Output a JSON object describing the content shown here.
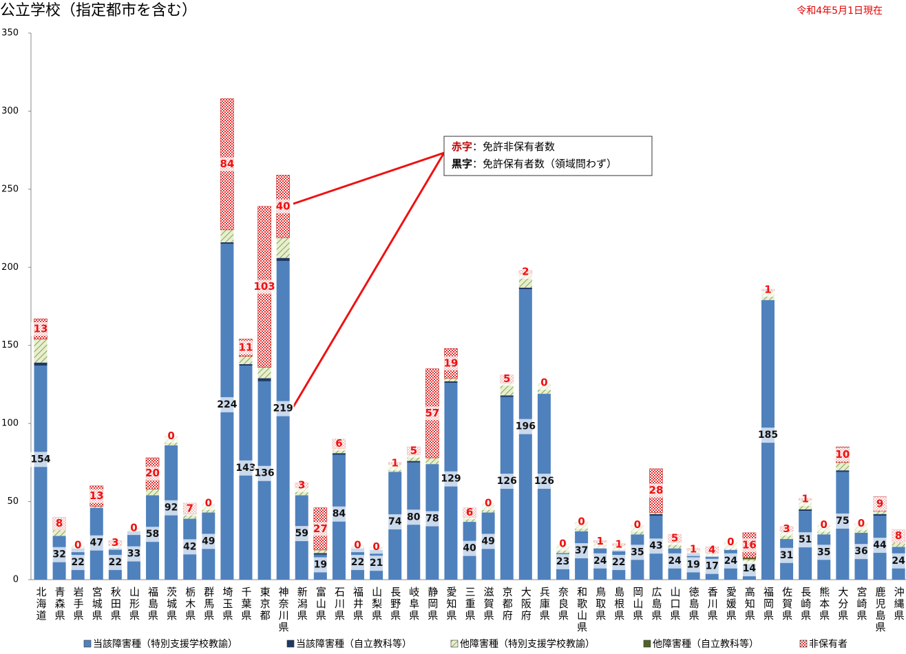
{
  "chart_data": {
    "type": "stacked_bar",
    "title": "公立学校（指定都市を含む）",
    "subtitle": "令和4年5月1日現在",
    "categories": [
      "北海道",
      "青森県",
      "岩手県",
      "宮城県",
      "秋田県",
      "山形県",
      "福島県",
      "茨城県",
      "栃木県",
      "群馬県",
      "埼玉県",
      "千葉県",
      "東京都",
      "神奈川県",
      "新潟県",
      "富山県",
      "石川県",
      "福井県",
      "山梨県",
      "長野県",
      "岐阜県",
      "静岡県",
      "愛知県",
      "三重県",
      "滋賀県",
      "京都府",
      "大阪府",
      "兵庫県",
      "奈良県",
      "和歌山県",
      "鳥取県",
      "島根県",
      "岡山県",
      "広島県",
      "山口県",
      "徳島県",
      "香川県",
      "愛媛県",
      "高知県",
      "福岡県",
      "佐賀県",
      "長崎県",
      "熊本県",
      "大分県",
      "宮崎県",
      "鹿児島県",
      "沖縄県"
    ],
    "series": [
      {
        "name": "当該障害種（特別支援学校教諭）",
        "color": "#4f81bd",
        "fill_style": "solid",
        "values": [
          137,
          28,
          20,
          46,
          20,
          31,
          54,
          86,
          39,
          43,
          215,
          137,
          127,
          204,
          54,
          16,
          80,
          20,
          19,
          69,
          75,
          74,
          126,
          37,
          43,
          117,
          186,
          119,
          17,
          31,
          20,
          19,
          29,
          41,
          20,
          17,
          15,
          19,
          10,
          179,
          26,
          44,
          29,
          69,
          30,
          41,
          21
        ]
      },
      {
        "name": "当該障害種（自立教科等）",
        "color": "#1f3864",
        "fill_style": "solid",
        "values": [
          2,
          0,
          0,
          0,
          0,
          0,
          0,
          0,
          0,
          0,
          1,
          1,
          2,
          2,
          0,
          1,
          1,
          0,
          0,
          0,
          1,
          0,
          1,
          0,
          0,
          1,
          1,
          0,
          0,
          0,
          0,
          0,
          0,
          1,
          0,
          0,
          0,
          0,
          0,
          0,
          0,
          1,
          0,
          1,
          0,
          1,
          0
        ]
      },
      {
        "name": "他障害種（特別支援学校教諭）",
        "color": "#d7e4bd",
        "fill_style": "hatch",
        "values": [
          15,
          4,
          2,
          1,
          2,
          2,
          4,
          6,
          3,
          6,
          8,
          5,
          7,
          13,
          5,
          2,
          3,
          2,
          2,
          5,
          4,
          4,
          2,
          3,
          6,
          8,
          9,
          7,
          6,
          6,
          4,
          3,
          6,
          1,
          4,
          2,
          2,
          5,
          3,
          6,
          5,
          6,
          6,
          5,
          6,
          2,
          3
        ]
      },
      {
        "name": "他障害種（自立教科等）",
        "color": "#4f6228",
        "fill_style": "solid",
        "values": [
          0,
          0,
          0,
          0,
          0,
          0,
          0,
          0,
          0,
          0,
          0,
          0,
          0,
          0,
          0,
          0,
          0,
          0,
          0,
          0,
          0,
          0,
          0,
          0,
          0,
          0,
          0,
          0,
          0,
          0,
          0,
          0,
          0,
          0,
          0,
          0,
          0,
          0,
          1,
          0,
          0,
          0,
          0,
          0,
          0,
          0,
          0
        ]
      },
      {
        "name": "非保有者",
        "color": "#e03030",
        "fill_style": "check",
        "values": [
          13,
          8,
          0,
          13,
          3,
          0,
          20,
          0,
          7,
          0,
          84,
          11,
          103,
          40,
          3,
          27,
          6,
          0,
          0,
          1,
          5,
          57,
          19,
          6,
          0,
          5,
          2,
          0,
          0,
          0,
          1,
          1,
          0,
          28,
          5,
          1,
          4,
          0,
          16,
          1,
          3,
          1,
          0,
          10,
          0,
          9,
          8
        ]
      }
    ],
    "holder_labels": [
      154,
      32,
      22,
      47,
      22,
      33,
      58,
      92,
      42,
      49,
      224,
      143,
      136,
      219,
      59,
      19,
      84,
      22,
      21,
      74,
      80,
      78,
      129,
      40,
      49,
      126,
      196,
      126,
      23,
      37,
      24,
      22,
      35,
      43,
      24,
      19,
      17,
      24,
      14,
      185,
      31,
      51,
      35,
      75,
      36,
      44,
      24
    ],
    "ylim": [
      0,
      350
    ],
    "yticks": [
      0,
      50,
      100,
      150,
      200,
      250,
      300,
      350
    ],
    "annotation": {
      "red_key": "赤字",
      "red_text": "：免許非保有者数",
      "black_key": "黒字",
      "black_text": "：免許保有者数（領域問わず）"
    }
  }
}
